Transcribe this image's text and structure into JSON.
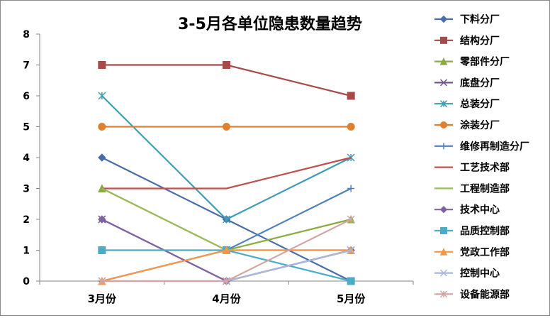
{
  "chart_data": {
    "type": "line",
    "title": "3-5月各单位隐患数量趋势",
    "xlabel": "",
    "ylabel": "",
    "categories": [
      "3月份",
      "4月份",
      "5月份"
    ],
    "ylim": [
      0,
      8
    ],
    "yticks": [
      0,
      1,
      2,
      3,
      4,
      5,
      6,
      7,
      8
    ],
    "grid": false,
    "legend_position": "right",
    "series": [
      {
        "name": "下料分厂",
        "values": [
          4,
          2,
          0
        ],
        "color": "#4a6da7",
        "marker": "diamond"
      },
      {
        "name": "结构分厂",
        "values": [
          7,
          7,
          6
        ],
        "color": "#a64a4a",
        "marker": "square"
      },
      {
        "name": "零部件分厂",
        "values": [
          3,
          1,
          2
        ],
        "color": "#8aab3f",
        "marker": "triangle"
      },
      {
        "name": "底盘分厂",
        "values": [
          2,
          0,
          1
        ],
        "color": "#6e5495",
        "marker": "x"
      },
      {
        "name": "总装分厂",
        "values": [
          6,
          2,
          4
        ],
        "color": "#3c9db5",
        "marker": "star"
      },
      {
        "name": "涂装分厂",
        "values": [
          5,
          5,
          5
        ],
        "color": "#e0802f",
        "marker": "circle"
      },
      {
        "name": "维修再制造分厂",
        "values": [
          0,
          1,
          3
        ],
        "color": "#4f81bd",
        "marker": "plus"
      },
      {
        "name": "工艺技术部",
        "values": [
          3,
          3,
          4
        ],
        "color": "#c0504d",
        "marker": "none"
      },
      {
        "name": "工程制造部",
        "values": [
          3,
          1,
          1
        ],
        "color": "#9bbb59",
        "marker": "none"
      },
      {
        "name": "技术中心",
        "values": [
          2,
          0,
          1
        ],
        "color": "#8064a2",
        "marker": "diamond"
      },
      {
        "name": "品质控制部",
        "values": [
          1,
          1,
          0
        ],
        "color": "#4bacc6",
        "marker": "square"
      },
      {
        "name": "党政工作部",
        "values": [
          0,
          1,
          1
        ],
        "color": "#f79646",
        "marker": "triangle"
      },
      {
        "name": "控制中心",
        "values": [
          0,
          0,
          1
        ],
        "color": "#a9b8dc",
        "marker": "x"
      },
      {
        "name": "设备能源部",
        "values": [
          0,
          0,
          2
        ],
        "color": "#d4a5a5",
        "marker": "star"
      }
    ]
  }
}
